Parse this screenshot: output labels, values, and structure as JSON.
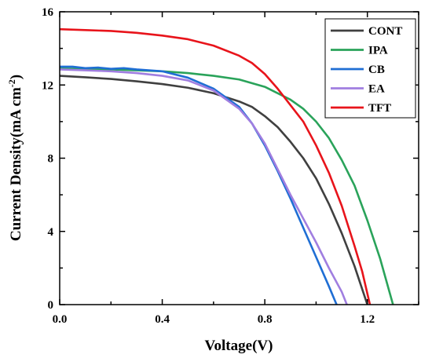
{
  "chart_data": {
    "type": "line",
    "xlabel": "Voltage(V)",
    "ylabel": {
      "main": "Current Density(mA cm",
      "superscript": "-2",
      "close": ")"
    },
    "xlim": [
      0,
      1.4
    ],
    "ylim": [
      0,
      16
    ],
    "xticks": [
      0.0,
      0.4,
      0.8,
      1.2
    ],
    "yticks": [
      0,
      4,
      8,
      12,
      16
    ],
    "xtick_labels": [
      "0.0",
      "0.4",
      "0.8",
      "1.2"
    ],
    "ytick_labels": [
      "0",
      "4",
      "8",
      "12",
      "16"
    ],
    "grid": false,
    "legend_position": "top-right",
    "series": [
      {
        "name": "CONT",
        "color": "#404040",
        "x": [
          0.0,
          0.1,
          0.2,
          0.3,
          0.4,
          0.5,
          0.6,
          0.7,
          0.75,
          0.8,
          0.85,
          0.9,
          0.95,
          1.0,
          1.05,
          1.1,
          1.15,
          1.2
        ],
        "y": [
          12.5,
          12.42,
          12.33,
          12.2,
          12.05,
          11.85,
          11.55,
          11.1,
          10.8,
          10.3,
          9.7,
          8.9,
          8.0,
          6.9,
          5.5,
          3.9,
          2.1,
          0.0
        ]
      },
      {
        "name": "IPA",
        "color": "#2aa35a",
        "x": [
          0.0,
          0.1,
          0.2,
          0.3,
          0.4,
          0.5,
          0.6,
          0.7,
          0.8,
          0.9,
          0.95,
          1.0,
          1.05,
          1.1,
          1.15,
          1.2,
          1.25,
          1.3
        ],
        "y": [
          12.9,
          12.88,
          12.85,
          12.8,
          12.75,
          12.65,
          12.5,
          12.3,
          11.9,
          11.2,
          10.7,
          10.0,
          9.1,
          7.9,
          6.5,
          4.6,
          2.5,
          0.0
        ]
      },
      {
        "name": "CB",
        "color": "#1f6ed4",
        "x": [
          0.0,
          0.05,
          0.1,
          0.15,
          0.2,
          0.25,
          0.3,
          0.4,
          0.5,
          0.6,
          0.7,
          0.75,
          0.8,
          0.85,
          0.9,
          0.95,
          1.0,
          1.05,
          1.08
        ],
        "y": [
          13.0,
          13.0,
          12.92,
          12.95,
          12.88,
          12.92,
          12.85,
          12.75,
          12.4,
          11.8,
          10.8,
          9.9,
          8.7,
          7.3,
          5.8,
          4.2,
          2.6,
          1.0,
          0.0
        ]
      },
      {
        "name": "EA",
        "color": "#a07ee0",
        "x": [
          0.0,
          0.1,
          0.2,
          0.3,
          0.4,
          0.5,
          0.6,
          0.7,
          0.75,
          0.8,
          0.85,
          0.9,
          0.95,
          1.0,
          1.05,
          1.1,
          1.12
        ],
        "y": [
          12.85,
          12.8,
          12.75,
          12.65,
          12.5,
          12.25,
          11.7,
          10.7,
          9.9,
          8.8,
          7.4,
          6.0,
          4.7,
          3.4,
          2.0,
          0.7,
          0.0
        ]
      },
      {
        "name": "TFT",
        "color": "#e8141b",
        "x": [
          0.0,
          0.1,
          0.2,
          0.3,
          0.4,
          0.5,
          0.6,
          0.7,
          0.75,
          0.8,
          0.85,
          0.9,
          0.95,
          1.0,
          1.05,
          1.1,
          1.15,
          1.18,
          1.21
        ],
        "y": [
          15.05,
          15.0,
          14.95,
          14.85,
          14.7,
          14.5,
          14.15,
          13.6,
          13.2,
          12.6,
          11.8,
          10.9,
          10.0,
          8.7,
          7.2,
          5.4,
          3.2,
          1.8,
          0.0
        ]
      }
    ]
  }
}
